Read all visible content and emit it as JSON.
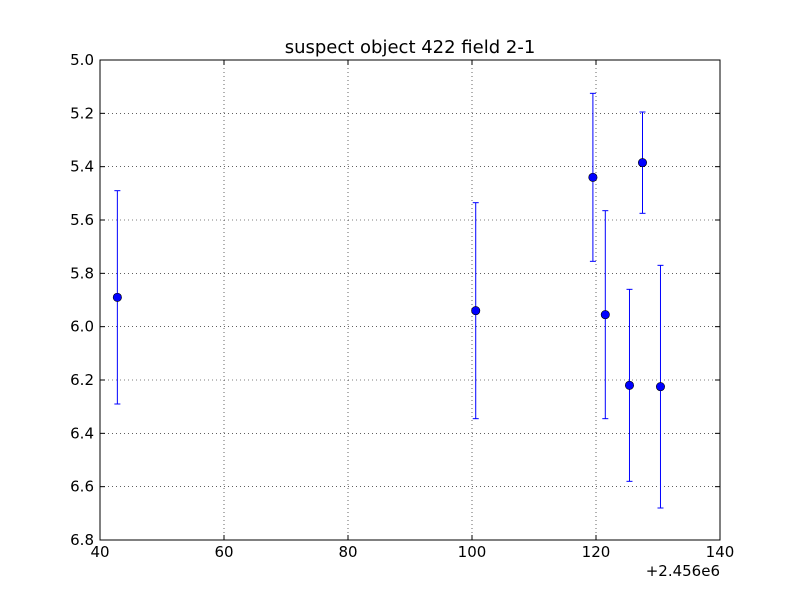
{
  "chart_data": {
    "type": "scatter",
    "title": "suspect object 422 field 2-1",
    "xlabel": "",
    "ylabel": "",
    "xlim": [
      40,
      140
    ],
    "ylim": [
      5.0,
      6.8
    ],
    "y_inverted": true,
    "grid": true,
    "x_ticks": [
      40,
      60,
      80,
      100,
      120,
      140
    ],
    "y_ticks": [
      5.0,
      5.2,
      5.4,
      5.6,
      5.8,
      6.0,
      6.2,
      6.4,
      6.6,
      6.8
    ],
    "x_offset_label": "+2.456e6",
    "marker_color": "#0000ff",
    "series": [
      {
        "points": [
          {
            "x": 42.8,
            "y": 5.89,
            "err": 0.4
          },
          {
            "x": 100.6,
            "y": 5.94,
            "err": 0.405
          },
          {
            "x": 119.5,
            "y": 5.44,
            "err": 0.315
          },
          {
            "x": 121.5,
            "y": 5.955,
            "err": 0.39
          },
          {
            "x": 125.4,
            "y": 6.22,
            "err": 0.36
          },
          {
            "x": 127.5,
            "y": 5.385,
            "err": 0.19
          },
          {
            "x": 130.4,
            "y": 6.225,
            "err": 0.455
          }
        ]
      }
    ]
  }
}
